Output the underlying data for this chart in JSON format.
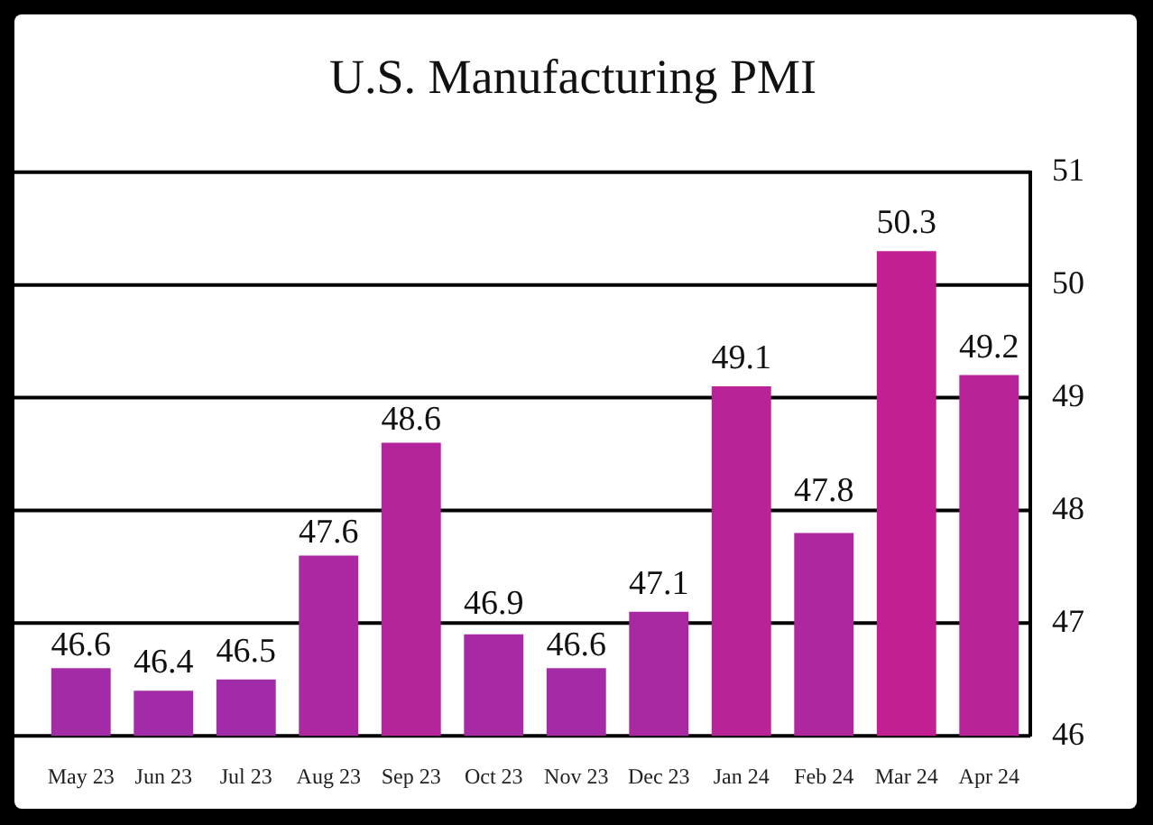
{
  "chart_data": {
    "type": "bar",
    "title": "U.S. Manufacturing PMI",
    "categories": [
      "May 23",
      "Jun 23",
      "Jul 23",
      "Aug 23",
      "Sep 23",
      "Oct 23",
      "Nov 23",
      "Dec 23",
      "Jan 24",
      "Feb 24",
      "Mar 24",
      "Apr 24"
    ],
    "values": [
      46.6,
      46.4,
      46.5,
      47.6,
      48.6,
      46.9,
      46.6,
      47.1,
      49.1,
      47.8,
      50.3,
      49.2
    ],
    "colors": [
      "#a42ba6",
      "#a22ba7",
      "#a22ba7",
      "#ad27a0",
      "#b4259b",
      "#a72aa4",
      "#a42ba5",
      "#a929a2",
      "#b82398",
      "#ae279f",
      "#c22092",
      "#b92398"
    ],
    "ylim": [
      46,
      51
    ],
    "yticks": [
      46,
      47,
      48,
      49,
      50,
      51
    ],
    "grid": "y",
    "data_labels": true
  }
}
